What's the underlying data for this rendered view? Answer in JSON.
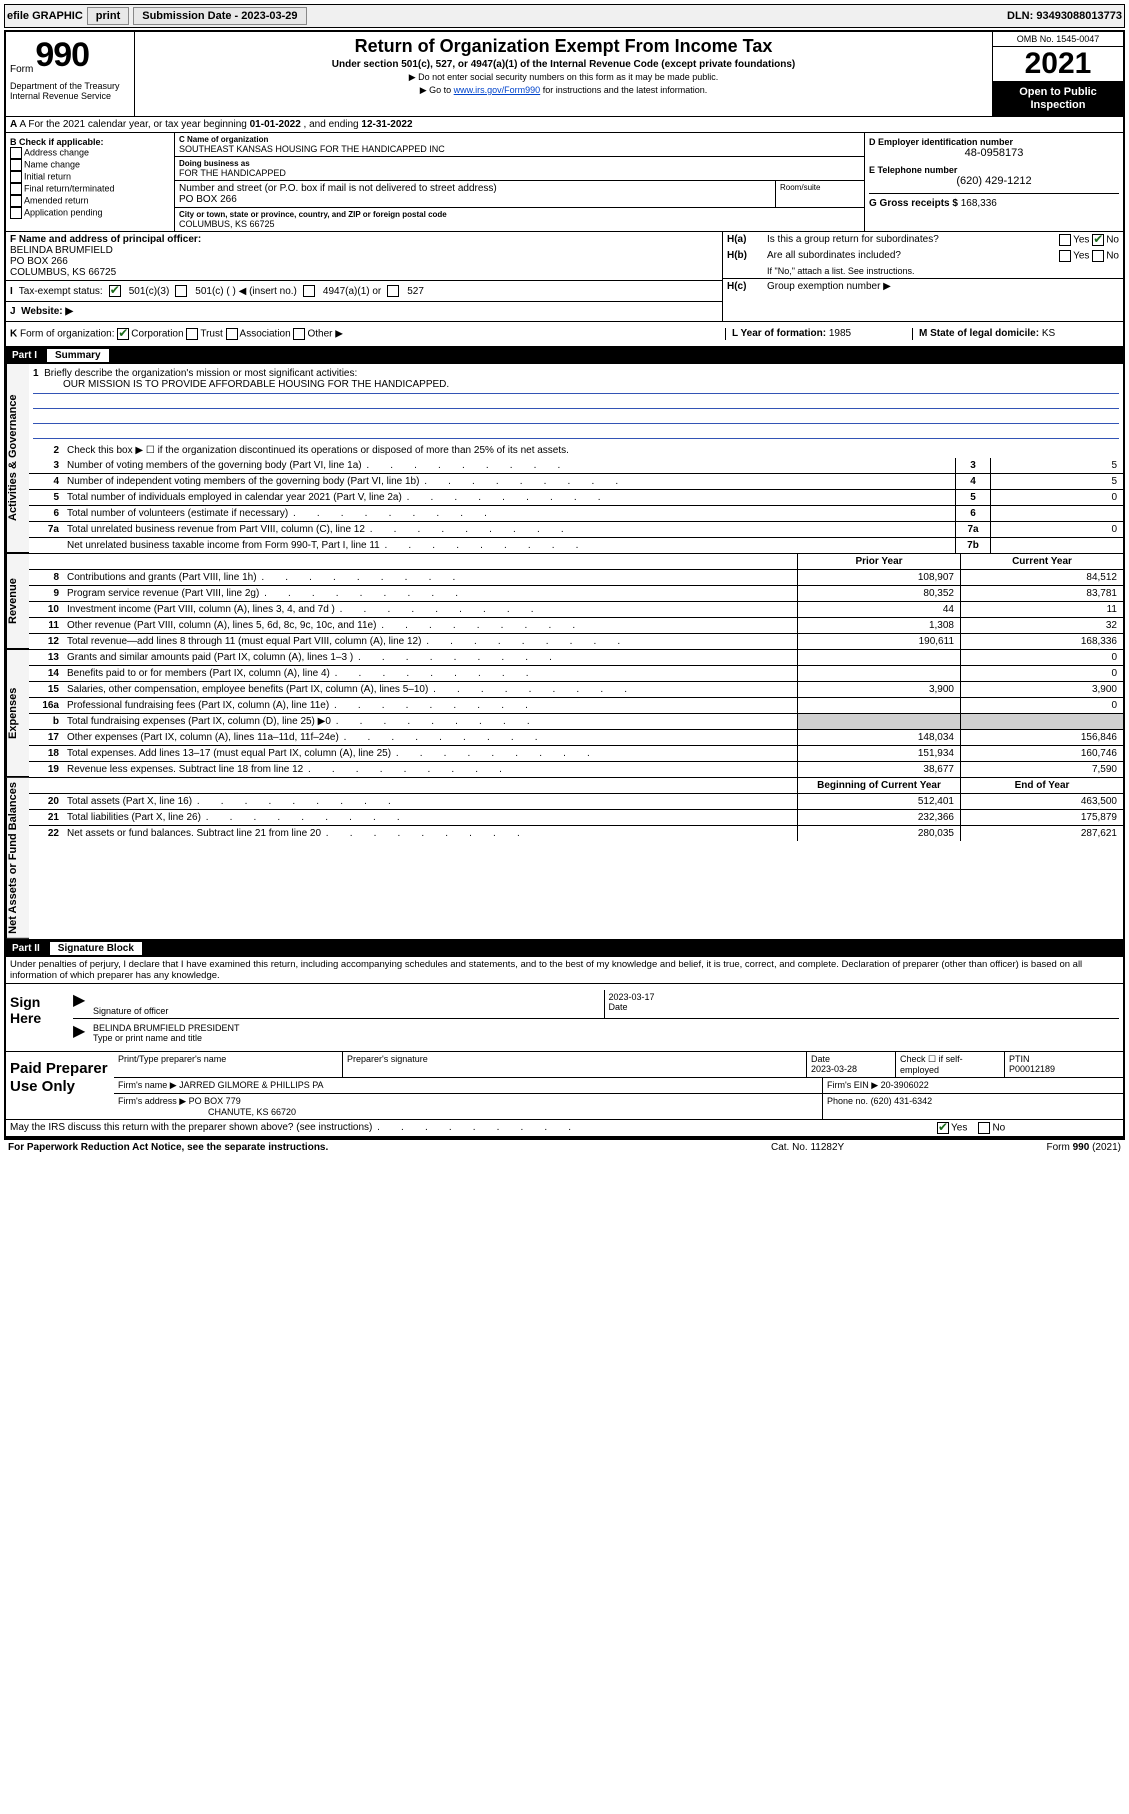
{
  "topbar": {
    "efile": "efile GRAPHIC",
    "print": "print",
    "sub_label": "Submission Date - 2023-03-29",
    "dln": "DLN: 93493088013773"
  },
  "header": {
    "form_word": "Form",
    "form_num": "990",
    "title": "Return of Organization Exempt From Income Tax",
    "sub": "Under section 501(c), 527, or 4947(a)(1) of the Internal Revenue Code (except private foundations)",
    "note1": "▶ Do not enter social security numbers on this form as it may be made public.",
    "note2_pre": "▶ Go to ",
    "note2_link": "www.irs.gov/Form990",
    "note2_post": " for instructions and the latest information.",
    "dept": "Department of the Treasury\nInternal Revenue Service",
    "omb": "OMB No. 1545-0047",
    "year": "2021",
    "open": "Open to Public Inspection"
  },
  "row_a": {
    "text_pre": "A For the 2021 calendar year, or tax year beginning ",
    "begin": "01-01-2022",
    "mid": "   , and ending ",
    "end": "12-31-2022"
  },
  "col_b": {
    "header": "B Check if applicable:",
    "items": [
      "Address change",
      "Name change",
      "Initial return",
      "Final return/terminated",
      "Amended return",
      "Application pending"
    ]
  },
  "col_c": {
    "name_label": "C Name of organization",
    "name": "SOUTHEAST KANSAS HOUSING FOR THE HANDICAPPED INC",
    "dba_label": "Doing business as",
    "dba": "FOR THE HANDICAPPED",
    "addr_label": "Number and street (or P.O. box if mail is not delivered to street address)",
    "addr": "PO BOX 266",
    "room_label": "Room/suite",
    "city_label": "City or town, state or province, country, and ZIP or foreign postal code",
    "city": "COLUMBUS, KS  66725",
    "f_label": "F Name and address of principal officer:",
    "f_name": "BELINDA BRUMFIELD",
    "f_addr1": "PO BOX 266",
    "f_addr2": "COLUMBUS, KS  66725"
  },
  "col_d": {
    "d_label": "D Employer identification number",
    "d_val": "48-0958173",
    "e_label": "E Telephone number",
    "e_val": "(620) 429-1212",
    "g_label": "G Gross receipts $",
    "g_val": "168,336"
  },
  "row_h": {
    "ha_label": "H(a)",
    "ha_text": "Is this a group return for subordinates?",
    "ha_yes": "Yes",
    "ha_no": "No",
    "hb_label": "H(b)",
    "hb_text": "Are all subordinates included?",
    "hb_note": "If \"No,\" attach a list. See instructions.",
    "hc_label": "H(c)",
    "hc_text": "Group exemption number ▶"
  },
  "row_i": {
    "label": "I",
    "text": "Tax-exempt status:",
    "opts": [
      "501(c)(3)",
      "501(c) (  ) ◀ (insert no.)",
      "4947(a)(1) or",
      "527"
    ]
  },
  "row_j": {
    "label": "J",
    "text": "Website: ▶"
  },
  "row_k": {
    "label": "K",
    "text": "Form of organization:",
    "opts": [
      "Corporation",
      "Trust",
      "Association",
      "Other ▶"
    ],
    "l_label": "L Year of formation:",
    "l_val": "1985",
    "m_label": "M State of legal domicile:",
    "m_val": "KS"
  },
  "part1": {
    "label": "Part I",
    "title": "Summary",
    "line1_label": "1",
    "line1_text": "Briefly describe the organization's mission or most significant activities:",
    "mission": "OUR MISSION IS TO PROVIDE AFFORDABLE HOUSING FOR THE HANDICAPPED.",
    "line2_label": "2",
    "line2_text": "Check this box ▶ ☐ if the organization discontinued its operations or disposed of more than 25% of its net assets.",
    "prior_head": "Prior Year",
    "curr_head": "Current Year",
    "boy_head": "Beginning of Current Year",
    "eoy_head": "End of Year"
  },
  "tabs": {
    "gov": "Activities & Governance",
    "rev": "Revenue",
    "exp": "Expenses",
    "net": "Net Assets or Fund Balances"
  },
  "gov_lines": [
    {
      "n": "3",
      "d": "Number of voting members of the governing body (Part VI, line 1a)",
      "box": "3",
      "val": "5"
    },
    {
      "n": "4",
      "d": "Number of independent voting members of the governing body (Part VI, line 1b)",
      "box": "4",
      "val": "5"
    },
    {
      "n": "5",
      "d": "Total number of individuals employed in calendar year 2021 (Part V, line 2a)",
      "box": "5",
      "val": "0"
    },
    {
      "n": "6",
      "d": "Total number of volunteers (estimate if necessary)",
      "box": "6",
      "val": ""
    },
    {
      "n": "7a",
      "d": "Total unrelated business revenue from Part VIII, column (C), line 12",
      "box": "7a",
      "val": "0"
    },
    {
      "n": "",
      "d": "Net unrelated business taxable income from Form 990-T, Part I, line 11",
      "box": "7b",
      "val": ""
    }
  ],
  "rev_lines": [
    {
      "n": "8",
      "d": "Contributions and grants (Part VIII, line 1h)",
      "p": "108,907",
      "c": "84,512"
    },
    {
      "n": "9",
      "d": "Program service revenue (Part VIII, line 2g)",
      "p": "80,352",
      "c": "83,781"
    },
    {
      "n": "10",
      "d": "Investment income (Part VIII, column (A), lines 3, 4, and 7d )",
      "p": "44",
      "c": "11"
    },
    {
      "n": "11",
      "d": "Other revenue (Part VIII, column (A), lines 5, 6d, 8c, 9c, 10c, and 11e)",
      "p": "1,308",
      "c": "32"
    },
    {
      "n": "12",
      "d": "Total revenue—add lines 8 through 11 (must equal Part VIII, column (A), line 12)",
      "p": "190,611",
      "c": "168,336"
    }
  ],
  "exp_lines": [
    {
      "n": "13",
      "d": "Grants and similar amounts paid (Part IX, column (A), lines 1–3 )",
      "p": "",
      "c": "0"
    },
    {
      "n": "14",
      "d": "Benefits paid to or for members (Part IX, column (A), line 4)",
      "p": "",
      "c": "0"
    },
    {
      "n": "15",
      "d": "Salaries, other compensation, employee benefits (Part IX, column (A), lines 5–10)",
      "p": "3,900",
      "c": "3,900"
    },
    {
      "n": "16a",
      "d": "Professional fundraising fees (Part IX, column (A), line 11e)",
      "p": "",
      "c": "0"
    },
    {
      "n": "b",
      "d": "Total fundraising expenses (Part IX, column (D), line 25) ▶0",
      "p": "SHADE",
      "c": "SHADE"
    },
    {
      "n": "17",
      "d": "Other expenses (Part IX, column (A), lines 11a–11d, 11f–24e)",
      "p": "148,034",
      "c": "156,846"
    },
    {
      "n": "18",
      "d": "Total expenses. Add lines 13–17 (must equal Part IX, column (A), line 25)",
      "p": "151,934",
      "c": "160,746"
    },
    {
      "n": "19",
      "d": "Revenue less expenses. Subtract line 18 from line 12",
      "p": "38,677",
      "c": "7,590"
    }
  ],
  "net_lines": [
    {
      "n": "20",
      "d": "Total assets (Part X, line 16)",
      "p": "512,401",
      "c": "463,500"
    },
    {
      "n": "21",
      "d": "Total liabilities (Part X, line 26)",
      "p": "232,366",
      "c": "175,879"
    },
    {
      "n": "22",
      "d": "Net assets or fund balances. Subtract line 21 from line 20",
      "p": "280,035",
      "c": "287,621"
    }
  ],
  "part2": {
    "label": "Part II",
    "title": "Signature Block",
    "declare": "Under penalties of perjury, I declare that I have examined this return, including accompanying schedules and statements, and to the best of my knowledge and belief, it is true, correct, and complete. Declaration of preparer (other than officer) is based on all information of which preparer has any knowledge."
  },
  "sign": {
    "label": "Sign Here",
    "sig_label": "Signature of officer",
    "date_label": "Date",
    "date": "2023-03-17",
    "name": "BELINDA BRUMFIELD  PRESIDENT",
    "name_label": "Type or print name and title"
  },
  "preparer": {
    "label": "Paid Preparer Use Only",
    "h1": "Print/Type preparer's name",
    "h2": "Preparer's signature",
    "h3": "Date",
    "date": "2023-03-28",
    "h4": "Check ☐ if self-employed",
    "h5": "PTIN",
    "ptin": "P00012189",
    "firm_name_lbl": "Firm's name    ▶",
    "firm_name": "JARRED GILMORE & PHILLIPS PA",
    "firm_ein_lbl": "Firm's EIN ▶",
    "firm_ein": "20-3906022",
    "firm_addr_lbl": "Firm's address ▶",
    "firm_addr1": "PO BOX 779",
    "firm_addr2": "CHANUTE, KS  66720",
    "phone_lbl": "Phone no.",
    "phone": "(620) 431-6342"
  },
  "discuss": {
    "text": "May the IRS discuss this return with the preparer shown above? (see instructions)",
    "yes": "Yes",
    "no": "No"
  },
  "footer": {
    "left": "For Paperwork Reduction Act Notice, see the separate instructions.",
    "mid": "Cat. No. 11282Y",
    "right_pre": "Form ",
    "right_form": "990",
    "right_post": " (2021)"
  }
}
